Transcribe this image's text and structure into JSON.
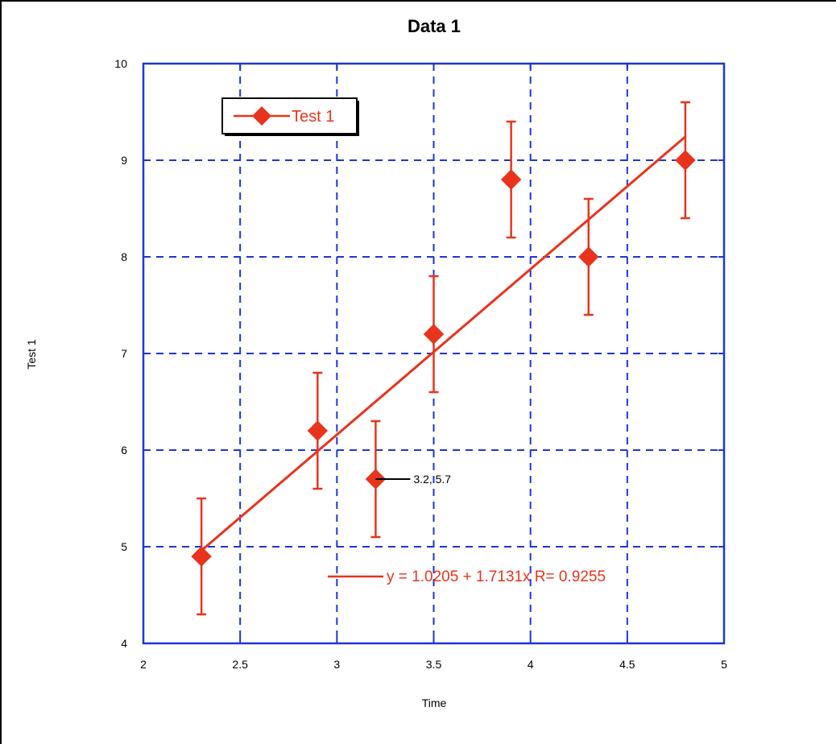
{
  "chart_data": {
    "type": "scatter",
    "title": "Data 1",
    "xlabel": "Time",
    "ylabel": "Test 1",
    "xlim": [
      2,
      5
    ],
    "ylim": [
      4,
      10
    ],
    "x_ticks": [
      "2",
      "2.5",
      "3",
      "3.5",
      "4",
      "4.5",
      "5"
    ],
    "y_ticks": [
      "4",
      "5",
      "6",
      "7",
      "8",
      "9",
      "10"
    ],
    "grid": true,
    "legend_position": "top-left",
    "series": [
      {
        "name": "Test 1",
        "color": "#e8341c",
        "marker": "diamond",
        "x": [
          2.3,
          2.9,
          3.2,
          3.5,
          3.9,
          4.3,
          4.8
        ],
        "y": [
          4.9,
          6.2,
          5.7,
          7.2,
          8.8,
          8.0,
          9.0
        ],
        "error": [
          0.6,
          0.6,
          0.6,
          0.6,
          0.6,
          0.6,
          0.6
        ]
      }
    ],
    "annotation": {
      "x": 3.2,
      "y": 5.7,
      "text": "3.2, 5.7"
    },
    "fit": {
      "intercept": 1.0205,
      "slope": 1.7131,
      "x_range": [
        2.3,
        4.8
      ],
      "label": "y = 1.0205 + 1.7131x   R= 0.9255"
    }
  },
  "colors": {
    "grid": "#1f35d6",
    "series": "#e8341c",
    "axis_text": "#000000"
  }
}
